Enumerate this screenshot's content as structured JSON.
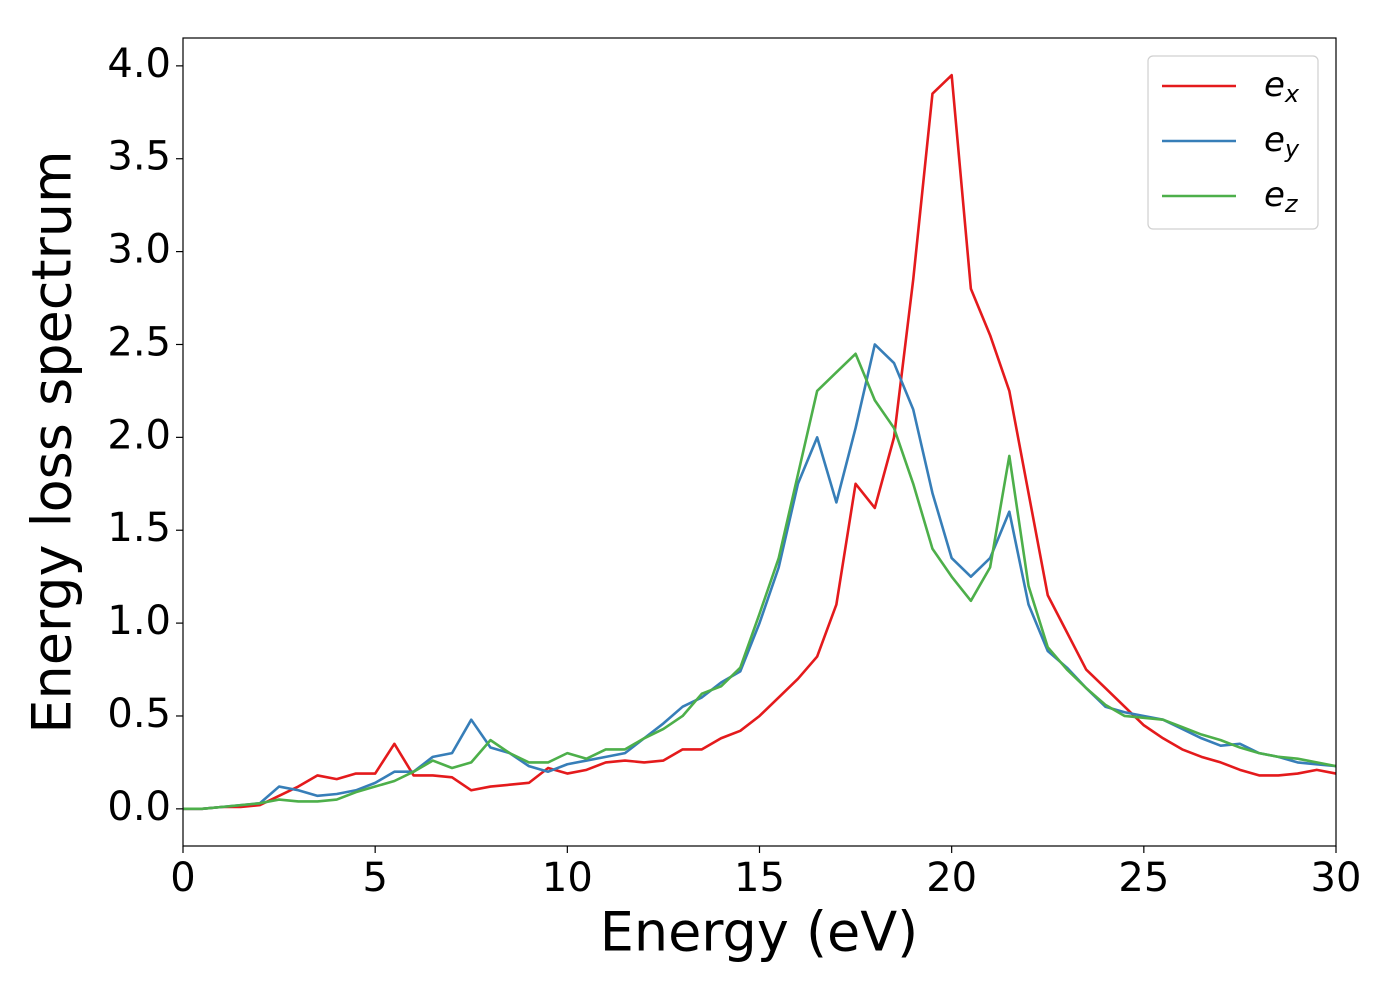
{
  "chart_data": {
    "type": "line",
    "xlabel": "Energy (eV)",
    "ylabel": "Energy loss spectrum",
    "x": [
      0,
      0.5,
      1,
      1.5,
      2,
      2.5,
      3,
      3.5,
      4,
      4.5,
      5,
      5.5,
      6,
      6.5,
      7,
      7.5,
      8,
      8.5,
      9,
      9.5,
      10,
      10.5,
      11,
      11.5,
      12,
      12.5,
      13,
      13.5,
      14,
      14.5,
      15,
      15.5,
      16,
      16.5,
      17,
      17.5,
      18,
      18.5,
      19,
      19.5,
      20,
      20.5,
      21,
      21.5,
      22,
      22.5,
      23,
      23.5,
      24,
      24.5,
      25,
      25.5,
      26,
      26.5,
      27,
      27.5,
      28,
      28.5,
      29,
      29.5,
      30
    ],
    "series": [
      {
        "name": "ex",
        "color": "#e41a1c",
        "values": [
          0,
          0,
          0.01,
          0.01,
          0.02,
          0.07,
          0.12,
          0.18,
          0.16,
          0.19,
          0.19,
          0.35,
          0.18,
          0.18,
          0.17,
          0.1,
          0.12,
          0.13,
          0.14,
          0.22,
          0.19,
          0.21,
          0.25,
          0.26,
          0.25,
          0.26,
          0.32,
          0.32,
          0.38,
          0.42,
          0.5,
          0.6,
          0.7,
          0.82,
          1.1,
          1.75,
          1.62,
          2.0,
          2.85,
          3.85,
          3.95,
          2.8,
          2.55,
          2.25,
          1.7,
          1.15,
          0.95,
          0.75,
          0.65,
          0.55,
          0.45,
          0.38,
          0.32,
          0.28,
          0.25,
          0.21,
          0.18,
          0.18,
          0.19,
          0.21,
          0.19
        ]
      },
      {
        "name": "ey",
        "color": "#377eb8",
        "values": [
          0,
          0,
          0.01,
          0.02,
          0.03,
          0.12,
          0.1,
          0.07,
          0.08,
          0.1,
          0.14,
          0.2,
          0.2,
          0.28,
          0.3,
          0.48,
          0.33,
          0.3,
          0.23,
          0.2,
          0.24,
          0.26,
          0.28,
          0.3,
          0.38,
          0.46,
          0.55,
          0.6,
          0.68,
          0.74,
          1.0,
          1.3,
          1.75,
          2.0,
          1.65,
          2.05,
          2.5,
          2.4,
          2.15,
          1.7,
          1.35,
          1.25,
          1.35,
          1.6,
          1.1,
          0.85,
          0.76,
          0.65,
          0.55,
          0.52,
          0.5,
          0.48,
          0.43,
          0.38,
          0.34,
          0.35,
          0.3,
          0.28,
          0.25,
          0.24,
          0.23
        ]
      },
      {
        "name": "ez",
        "color": "#4daf4a",
        "values": [
          0,
          0,
          0.01,
          0.02,
          0.03,
          0.05,
          0.04,
          0.04,
          0.05,
          0.09,
          0.12,
          0.15,
          0.2,
          0.26,
          0.22,
          0.25,
          0.37,
          0.3,
          0.25,
          0.25,
          0.3,
          0.27,
          0.32,
          0.32,
          0.38,
          0.43,
          0.5,
          0.62,
          0.66,
          0.76,
          1.05,
          1.35,
          1.8,
          2.25,
          2.35,
          2.45,
          2.2,
          2.05,
          1.75,
          1.4,
          1.25,
          1.12,
          1.3,
          1.9,
          1.2,
          0.87,
          0.75,
          0.65,
          0.56,
          0.5,
          0.49,
          0.48,
          0.44,
          0.4,
          0.37,
          0.33,
          0.3,
          0.28,
          0.27,
          0.25,
          0.23
        ]
      }
    ],
    "xlim": [
      0,
      30
    ],
    "xticks": [
      0,
      5,
      10,
      15,
      20,
      25,
      30
    ],
    "ylim": [
      -0.2,
      4.15
    ],
    "yticks": [
      {
        "value": 0,
        "label": "0.0"
      },
      {
        "value": 0.5,
        "label": "0.5"
      },
      {
        "value": 1,
        "label": "1.0"
      },
      {
        "value": 1.5,
        "label": "1.5"
      },
      {
        "value": 2,
        "label": "2.0"
      },
      {
        "value": 2.5,
        "label": "2.5"
      },
      {
        "value": 3,
        "label": "3.0"
      },
      {
        "value": 3.5,
        "label": "3.5"
      },
      {
        "value": 4,
        "label": "4.0"
      }
    ],
    "grid": false,
    "legend": "upper right"
  }
}
